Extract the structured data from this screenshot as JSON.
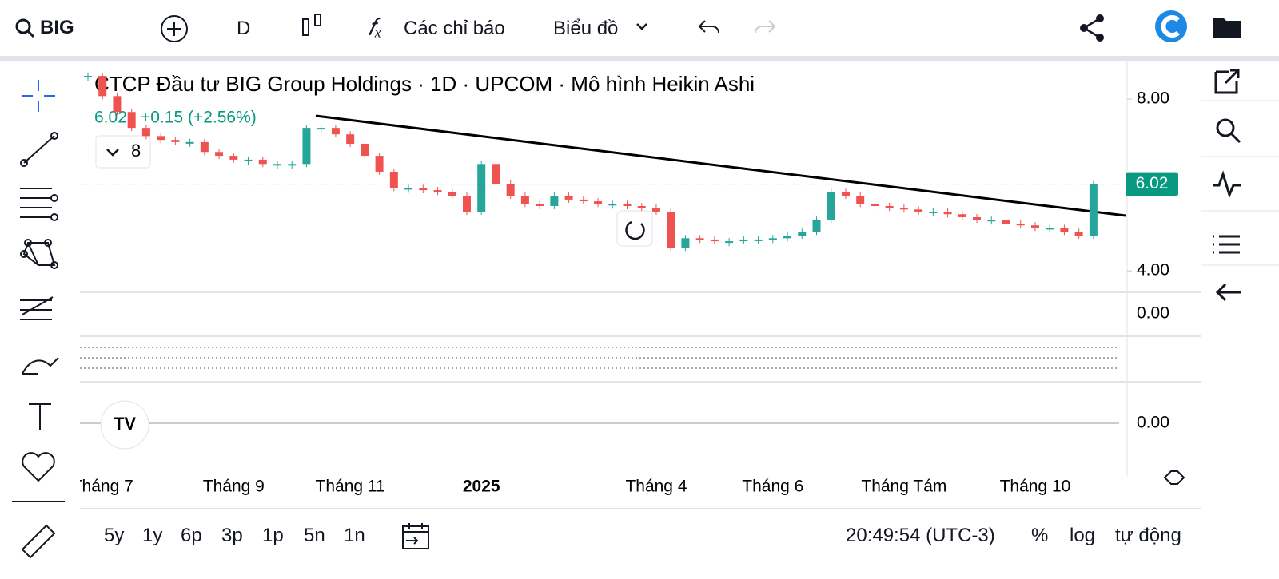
{
  "toolbar": {
    "symbol": "BIG",
    "interval": "D",
    "indicators": "Các chỉ báo",
    "chart_menu": "Biểu đồ"
  },
  "chart_data": {
    "type": "heikin-ashi",
    "title": "CTCP Đầu tư BIG Group Holdings · 1D · UPCOM · Mô hình Heikin Ashi",
    "last": "6.02",
    "change": "+0.15 (+2.56%)",
    "indicator_count": "8",
    "categories": [
      null,
      "Tháng 7",
      null,
      null,
      null,
      null,
      null,
      null,
      null,
      null,
      "Tháng 9",
      null,
      null,
      null,
      null,
      null,
      null,
      null,
      "Tháng 11",
      null,
      null,
      null,
      null,
      null,
      null,
      null,
      null,
      "2025",
      null,
      null,
      null,
      null,
      null,
      null,
      null,
      null,
      null,
      null,
      null,
      "Tháng 4",
      null,
      null,
      null,
      null,
      null,
      null,
      null,
      "Tháng 6",
      null,
      null,
      null,
      null,
      null,
      null,
      null,
      null,
      "Tháng Tám",
      null,
      null,
      null,
      null,
      null,
      null,
      null,
      null,
      "Tháng 10",
      null,
      null,
      null,
      null
    ],
    "values": [
      8.54,
      8.07,
      7.7,
      7.33,
      7.14,
      7.05,
      7.0,
      7.0,
      6.77,
      6.68,
      6.59,
      6.59,
      6.49,
      6.49,
      6.49,
      7.33,
      7.33,
      7.18,
      6.96,
      6.68,
      6.31,
      5.93,
      5.93,
      5.88,
      5.84,
      5.75,
      5.38,
      6.49,
      6.03,
      5.75,
      5.56,
      5.51,
      5.75,
      5.66,
      5.62,
      5.56,
      5.56,
      5.51,
      5.47,
      5.38,
      4.54,
      4.76,
      4.73,
      4.69,
      4.69,
      4.73,
      4.73,
      4.76,
      4.82,
      4.91,
      5.19,
      5.84,
      5.75,
      5.56,
      5.51,
      5.47,
      5.43,
      5.38,
      5.38,
      5.32,
      5.25,
      5.19,
      5.19,
      5.1,
      5.06,
      5.0,
      5.0,
      4.91,
      4.82,
      6.02
    ],
    "up_color": "#26a69a",
    "down_color": "#ef5350",
    "ylim": [
      3.52,
      8.82
    ],
    "yticks": [
      {
        "value": 4,
        "label": "4.00"
      },
      {
        "value": 8,
        "label": "8.00"
      }
    ],
    "last_price": {
      "value": 6.02,
      "label": "6.02"
    },
    "panes": [
      {
        "tick": "0.00"
      },
      {
        "tick": "0.00"
      }
    ]
  },
  "bottom_bar": {
    "ranges": [
      "5y",
      "1y",
      "6p",
      "3p",
      "1p",
      "5n",
      "1n"
    ],
    "clock": "20:49:54 (UTC-3)",
    "percent": "%",
    "log": "log",
    "auto": "tự động"
  }
}
